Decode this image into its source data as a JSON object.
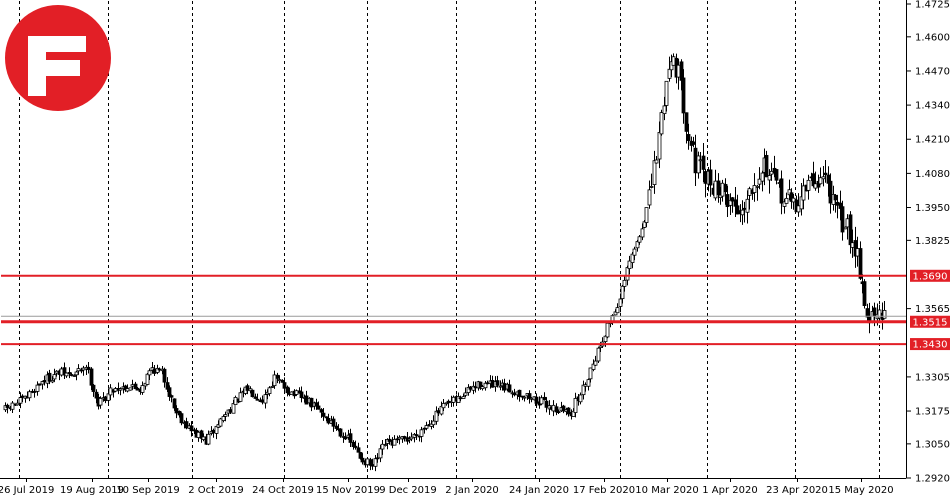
{
  "chart_data": {
    "type": "candlestick",
    "title": "",
    "xlabel": "",
    "ylabel": "",
    "ylim": [
      1.292,
      1.4725
    ],
    "grid": true,
    "x_tick_labels": [
      "26 Jul 2019",
      "19 Aug 2019",
      "10 Sep 2019",
      "2 Oct 2019",
      "24 Oct 2019",
      "15 Nov 2019",
      "9 Dec 2019",
      "2 Jan 2020",
      "24 Jan 2020",
      "17 Feb 2020",
      "10 Mar 2020",
      "1 Apr 2020",
      "23 Apr 2020",
      "15 May 2020"
    ],
    "y_tick_labels": [
      "1.4725",
      "1.4600",
      "1.4470",
      "1.4340",
      "1.4210",
      "1.4080",
      "1.3950",
      "1.3825",
      "1.3565",
      "1.3305",
      "1.3175",
      "1.3050",
      "1.2920"
    ],
    "y_tick_values": [
      1.4725,
      1.46,
      1.447,
      1.434,
      1.421,
      1.408,
      1.395,
      1.3825,
      1.3565,
      1.3305,
      1.3175,
      1.305,
      1.292
    ],
    "horizontal_levels": [
      {
        "label": "1.3690",
        "value": 1.369
      },
      {
        "label": "1.3515",
        "value": 1.3515
      },
      {
        "label": "1.3430",
        "value": 1.343
      }
    ],
    "current_price": 1.353,
    "close_path": [
      [
        0,
        1.318
      ],
      [
        8,
        1.322
      ],
      [
        15,
        1.329
      ],
      [
        22,
        1.332
      ],
      [
        28,
        1.331
      ],
      [
        33,
        1.335
      ],
      [
        38,
        1.32
      ],
      [
        44,
        1.326
      ],
      [
        50,
        1.327
      ],
      [
        55,
        1.326
      ],
      [
        60,
        1.334
      ],
      [
        64,
        1.332
      ],
      [
        70,
        1.317
      ],
      [
        76,
        1.31
      ],
      [
        82,
        1.306
      ],
      [
        88,
        1.314
      ],
      [
        93,
        1.32
      ],
      [
        99,
        1.326
      ],
      [
        105,
        1.322
      ],
      [
        110,
        1.33
      ],
      [
        116,
        1.325
      ],
      [
        122,
        1.322
      ],
      [
        128,
        1.318
      ],
      [
        133,
        1.313
      ],
      [
        139,
        1.308
      ],
      [
        145,
        1.3
      ],
      [
        150,
        1.296
      ],
      [
        155,
        1.305
      ],
      [
        161,
        1.306
      ],
      [
        167,
        1.308
      ],
      [
        173,
        1.313
      ],
      [
        179,
        1.319
      ],
      [
        185,
        1.322
      ],
      [
        190,
        1.326
      ],
      [
        195,
        1.328
      ],
      [
        200,
        1.327
      ],
      [
        205,
        1.326
      ],
      [
        211,
        1.324
      ],
      [
        216,
        1.322
      ],
      [
        221,
        1.32
      ],
      [
        226,
        1.318
      ],
      [
        231,
        1.317
      ],
      [
        236,
        1.326
      ],
      [
        240,
        1.336
      ],
      [
        244,
        1.345
      ],
      [
        247,
        1.352
      ],
      [
        251,
        1.36
      ],
      [
        255,
        1.374
      ],
      [
        259,
        1.384
      ],
      [
        263,
        1.398
      ],
      [
        266,
        1.415
      ],
      [
        269,
        1.437
      ],
      [
        272,
        1.454
      ],
      [
        275,
        1.446
      ],
      [
        278,
        1.428
      ],
      [
        282,
        1.412
      ],
      [
        286,
        1.406
      ],
      [
        290,
        1.403
      ],
      [
        295,
        1.399
      ],
      [
        300,
        1.393
      ],
      [
        305,
        1.404
      ],
      [
        310,
        1.412
      ],
      [
        314,
        1.404
      ],
      [
        318,
        1.399
      ],
      [
        323,
        1.396
      ],
      [
        327,
        1.403
      ],
      [
        331,
        1.405
      ],
      [
        335,
        1.407
      ],
      [
        339,
        1.394
      ],
      [
        344,
        1.387
      ],
      [
        348,
        1.378
      ],
      [
        352,
        1.353
      ]
    ]
  }
}
